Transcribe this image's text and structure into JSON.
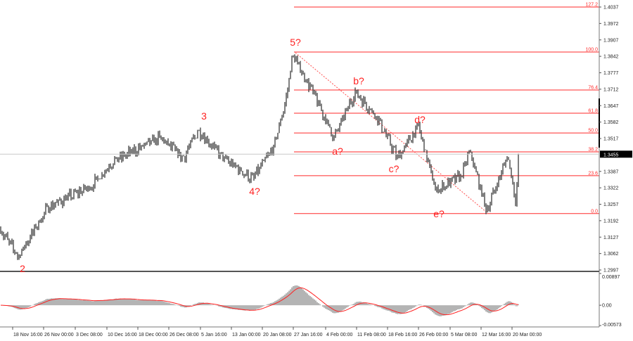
{
  "chart_data": {
    "type": "candlestick",
    "price_axis": {
      "range": [
        1.2997,
        1.4037
      ],
      "ticks": [
        "1.4037",
        "1.3972",
        "1.3907",
        "1.3842",
        "1.3777",
        "1.3712",
        "1.3647",
        "1.3582",
        "1.3517",
        "1.3387",
        "1.3322",
        "1.3257",
        "1.3192",
        "1.3127",
        "1.3062",
        "1.2997"
      ]
    },
    "current_price": "1.3455",
    "time_axis": {
      "ticks": [
        "18 Nov 16:00",
        "26 Nov 00:00",
        "3 Dec 08:00",
        "10 Dec 16:00",
        "18 Dec 00:00",
        "26 Dec 08:00",
        "5 Jan 16:00",
        "13 Jan 00:00",
        "20 Jan 08:00",
        "27 Jan 16:00",
        "4 Feb 00:00",
        "11 Feb 08:00",
        "18 Feb 16:00",
        "26 Feb 00:00",
        "5 Mar 08:00",
        "12 Mar 16:00",
        "20 Mar 00:00"
      ]
    },
    "price_path": [
      [
        "15 Nov 00:00",
        1.3175
      ],
      [
        "20 Nov 00:00",
        1.305
      ],
      [
        "27 Nov 00:00",
        1.3245
      ],
      [
        "7 Dec 00:00",
        1.3328
      ],
      [
        "12 Dec 00:00",
        1.3425
      ],
      [
        "24 Dec 00:00",
        1.352
      ],
      [
        "31 Dec 00:00",
        1.3439
      ],
      [
        "5 Jan 00:00",
        1.355
      ],
      [
        "11 Jan 00:00",
        1.344
      ],
      [
        "18 Jan 00:00",
        1.3356
      ],
      [
        "23 Jan 00:00",
        1.348
      ],
      [
        "26 Jan 00:00",
        1.3676
      ],
      [
        "27 Jan 12:00",
        1.3848
      ],
      [
        "1 Feb 00:00",
        1.3703
      ],
      [
        "6 Feb 00:00",
        1.352
      ],
      [
        "11 Feb 00:00",
        1.37
      ],
      [
        "16 Feb 00:00",
        1.3606
      ],
      [
        "21 Feb 00:00",
        1.344
      ],
      [
        "26 Feb 00:00",
        1.3565
      ],
      [
        "2 Mar 00:00",
        1.331
      ],
      [
        "8 Mar 00:00",
        1.337
      ],
      [
        "10 Mar 00:00",
        1.3467
      ],
      [
        "14 Mar 00:00",
        1.3231
      ],
      [
        "19 Mar 00:00",
        1.345
      ],
      [
        "21 Mar 00:00",
        1.3259
      ],
      [
        "21 Mar 12:00",
        1.3455
      ]
    ],
    "fibonacci": {
      "levels": [
        {
          "label": "127.2",
          "price": 1.4037
        },
        {
          "label": "100.0",
          "price": 1.3859
        },
        {
          "label": "76.4",
          "price": 1.3709
        },
        {
          "label": "61.8",
          "price": 1.3617
        },
        {
          "label": "50.0",
          "price": 1.3539
        },
        {
          "label": "38.2",
          "price": 1.3464
        },
        {
          "label": "23.6",
          "price": 1.337
        },
        {
          "label": "0.0",
          "price": 1.322
        }
      ],
      "color": "#ff2a2a"
    },
    "wave_labels": [
      "2",
      "3",
      "4?",
      "5?",
      "a?",
      "b?",
      "c?",
      "d?",
      "e?"
    ],
    "oscillator": {
      "range": [
        -0.00573,
        0.00897
      ],
      "ticks": [
        "0.00897",
        "0.00",
        "-0.00573"
      ],
      "histogram_color": "#b4b4b4",
      "signal_color": "#ff2020"
    },
    "candle_color": "#3a3a3a"
  }
}
